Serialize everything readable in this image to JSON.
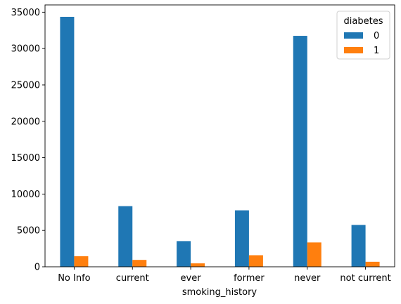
{
  "chart_data": {
    "type": "bar",
    "title": "",
    "xlabel": "smoking_history",
    "ylabel": "",
    "categories": [
      "No Info",
      "current",
      "ever",
      "former",
      "never",
      "not current"
    ],
    "series": [
      {
        "name": "0",
        "color": "#1f77b4",
        "values": [
          34362,
          8338,
          3532,
          7762,
          31748,
          5757
        ]
      },
      {
        "name": "1",
        "color": "#ff7f0e",
        "values": [
          1454,
          948,
          472,
          1590,
          3346,
          690
        ]
      }
    ],
    "ylim": [
      0,
      36000
    ],
    "yticks": [
      0,
      5000,
      10000,
      15000,
      20000,
      25000,
      30000,
      35000
    ],
    "legend": {
      "title": "diabetes",
      "placement": "top-right"
    },
    "grid": false
  }
}
